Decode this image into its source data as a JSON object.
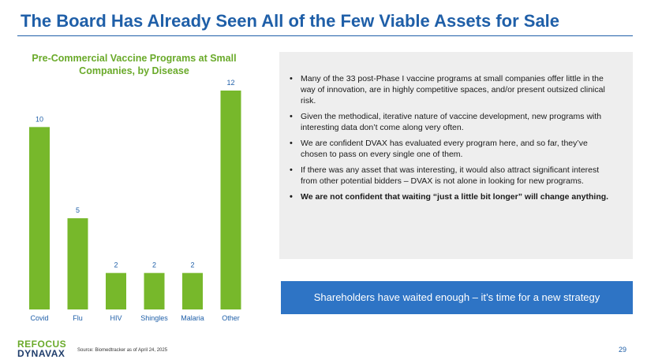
{
  "slide": {
    "title": "The Board Has Already Seen All of the Few Viable Assets for Sale",
    "page_number": "29",
    "source": "Source: Biomedtracker as of April 24, 2025"
  },
  "logo": {
    "line1": "REFOCUS",
    "line2": "DYNAVAX"
  },
  "chart_data": {
    "type": "bar",
    "title": "Pre-Commercial Vaccine Programs at Small Companies, by Disease",
    "categories": [
      "Covid",
      "Flu",
      "HIV",
      "Shingles",
      "Malaria",
      "Other"
    ],
    "values": [
      10,
      5,
      2,
      2,
      2,
      12
    ],
    "xlabel": "",
    "ylabel": "",
    "ylim": [
      0,
      12
    ],
    "bar_color": "#77b82b",
    "label_color": "#1f5fa8"
  },
  "bullets": [
    {
      "text": "Many of the 33 post-Phase I vaccine programs at small companies offer little in the way of innovation, are in highly competitive spaces, and/or present outsized clinical risk.",
      "bold": false
    },
    {
      "text": "Given the methodical, iterative nature of vaccine development, new programs with interesting data don’t come along very often.",
      "bold": false
    },
    {
      "text": "We are confident DVAX has evaluated every program here, and so far, they’ve chosen to pass on every single one of them.",
      "bold": false
    },
    {
      "text": "If there was any asset that was interesting, it would also attract significant interest from other potential bidders – DVAX is not alone in looking for new programs.",
      "bold": false
    },
    {
      "text": "We are not confident that waiting “just a little bit longer” will change anything.",
      "bold": true
    }
  ],
  "banner": {
    "text": "Shareholders have waited enough – it’s time for a new strategy",
    "color": "#2e74c5"
  }
}
